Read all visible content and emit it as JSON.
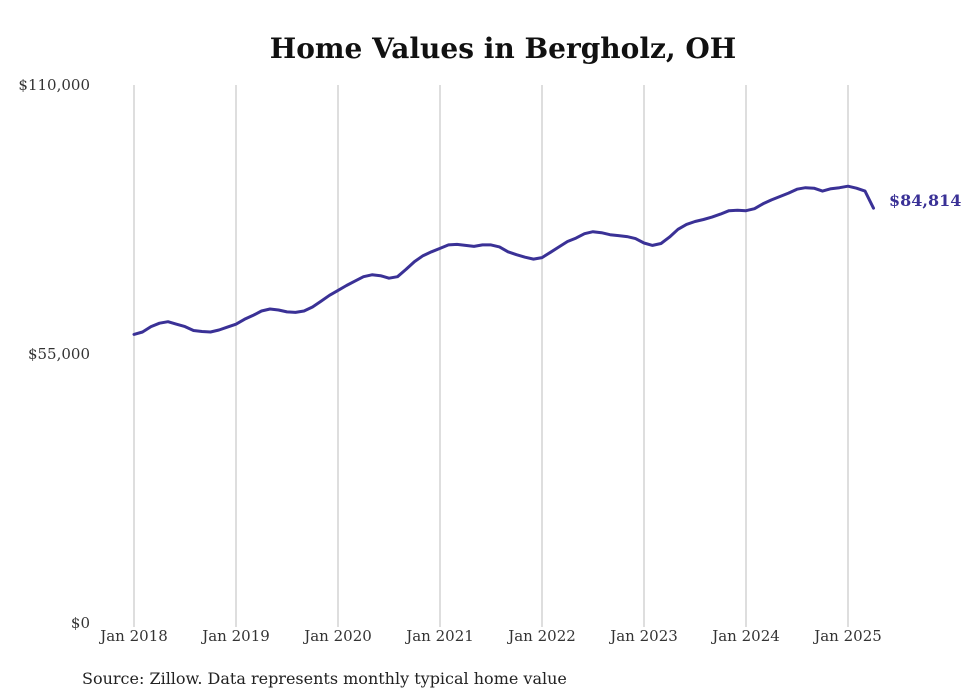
{
  "chart_data": {
    "type": "line",
    "title": "Home Values in Bergholz, OH",
    "source": "Source: Zillow. Data represents monthly typical home value",
    "xlabel": "",
    "ylabel": "",
    "ylim": [
      0,
      110000
    ],
    "y_ticks": [
      {
        "value": 0,
        "label": "$0"
      },
      {
        "value": 55000,
        "label": "$55,000"
      },
      {
        "value": 110000,
        "label": "$110,000"
      }
    ],
    "x_ticks": [
      {
        "value": 2018.0,
        "label": "Jan 2018"
      },
      {
        "value": 2019.0,
        "label": "Jan 2019"
      },
      {
        "value": 2020.0,
        "label": "Jan 2020"
      },
      {
        "value": 2021.0,
        "label": "Jan 2021"
      },
      {
        "value": 2022.0,
        "label": "Jan 2022"
      },
      {
        "value": 2023.0,
        "label": "Jan 2023"
      },
      {
        "value": 2024.0,
        "label": "Jan 2024"
      },
      {
        "value": 2025.0,
        "label": "Jan 2025"
      }
    ],
    "grid": "vertical",
    "line_color": "#3a3196",
    "end_label": "$84,814",
    "series": [
      {
        "x": [
          2018.0,
          2018.0833,
          2018.1667,
          2018.25,
          2018.3333,
          2018.4167,
          2018.5,
          2018.5833,
          2018.6667,
          2018.75,
          2018.8333,
          2018.9167,
          2019.0,
          2019.0833,
          2019.1667,
          2019.25,
          2019.3333,
          2019.4167,
          2019.5,
          2019.5833,
          2019.6667,
          2019.75,
          2019.8333,
          2019.9167,
          2020.0,
          2020.0833,
          2020.1667,
          2020.25,
          2020.3333,
          2020.4167,
          2020.5,
          2020.5833,
          2020.6667,
          2020.75,
          2020.8333,
          2020.9167,
          2021.0,
          2021.0833,
          2021.1667,
          2021.25,
          2021.3333,
          2021.4167,
          2021.5,
          2021.5833,
          2021.6667,
          2021.75,
          2021.8333,
          2021.9167,
          2022.0,
          2022.0833,
          2022.1667,
          2022.25,
          2022.3333,
          2022.4167,
          2022.5,
          2022.5833,
          2022.6667,
          2022.75,
          2022.8333,
          2022.9167,
          2023.0,
          2023.0833,
          2023.1667,
          2023.25,
          2023.3333,
          2023.4167,
          2023.5,
          2023.5833,
          2023.6667,
          2023.75,
          2023.8333,
          2023.9167,
          2024.0,
          2024.0833,
          2024.1667,
          2024.25,
          2024.3333,
          2024.4167,
          2024.5,
          2024.5833,
          2024.6667,
          2024.75,
          2024.8333,
          2024.9167,
          2025.0,
          2025.0833,
          2025.1667,
          2025.25
        ],
        "values": [
          59000,
          59500,
          60600,
          61300,
          61600,
          61100,
          60600,
          59800,
          59600,
          59500,
          59900,
          60500,
          61100,
          62100,
          62900,
          63800,
          64200,
          64000,
          63600,
          63500,
          63800,
          64600,
          65800,
          67000,
          68000,
          69000,
          69900,
          70800,
          71200,
          71000,
          70500,
          70800,
          72300,
          73900,
          75100,
          75900,
          76600,
          77300,
          77400,
          77200,
          77000,
          77300,
          77300,
          76900,
          75900,
          75300,
          74800,
          74400,
          74700,
          75800,
          76900,
          78000,
          78700,
          79600,
          80000,
          79800,
          79400,
          79200,
          79000,
          78600,
          77700,
          77200,
          77600,
          78900,
          80500,
          81500,
          82100,
          82500,
          83000,
          83600,
          84300,
          84400,
          84300,
          84700,
          85700,
          86500,
          87200,
          87900,
          88700,
          89000,
          88900,
          88300,
          88800,
          89000,
          89300,
          88900,
          88300,
          84814
        ]
      }
    ]
  }
}
